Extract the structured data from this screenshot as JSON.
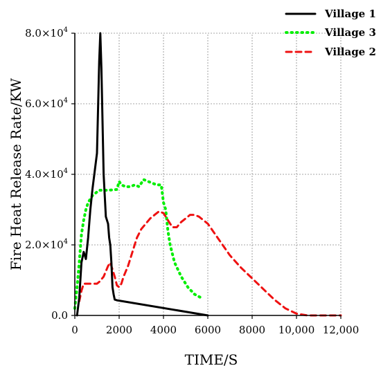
{
  "chart_data": {
    "type": "line",
    "title": "",
    "xlabel": "TIME/S",
    "ylabel": "Fire Heat Release Rate/KW",
    "xlim": [
      0,
      12000
    ],
    "ylim": [
      0,
      80000
    ],
    "x_ticks": [
      {
        "value": 0,
        "label": "0"
      },
      {
        "value": 2000,
        "label": "2000"
      },
      {
        "value": 4000,
        "label": "4000"
      },
      {
        "value": 6000,
        "label": "6000"
      },
      {
        "value": 8000,
        "label": "8000"
      },
      {
        "value": 10000,
        "label": "10,000"
      },
      {
        "value": 12000,
        "label": "12,000"
      }
    ],
    "y_ticks": [
      {
        "value": 0,
        "mantissa": "0.0",
        "exponent": ""
      },
      {
        "value": 20000,
        "mantissa": "2.0×10",
        "exponent": "4"
      },
      {
        "value": 40000,
        "mantissa": "4.0×10",
        "exponent": "4"
      },
      {
        "value": 60000,
        "mantissa": "6.0×10",
        "exponent": "4"
      },
      {
        "value": 80000,
        "mantissa": "8.0×10",
        "exponent": "4"
      }
    ],
    "grid": true,
    "legend_position": "top-right",
    "series": [
      {
        "name": "Village 1",
        "color": "#000000",
        "style": "solid",
        "x": [
          100,
          200,
          300,
          400,
          500,
          600,
          700,
          800,
          900,
          1000,
          1100,
          1150,
          1200,
          1300,
          1400,
          1500,
          1550,
          1600,
          1650,
          1700,
          1750,
          1800,
          1900,
          2000,
          6000
        ],
        "y": [
          0,
          5000,
          15000,
          18000,
          16000,
          22000,
          30000,
          36000,
          41000,
          46000,
          72000,
          80000,
          70000,
          40000,
          28000,
          26000,
          22000,
          20000,
          15000,
          8000,
          6000,
          4500,
          4300,
          4200,
          0
        ]
      },
      {
        "name": "Village 3",
        "color": "#00ee00",
        "style": "dotted",
        "x": [
          0,
          100,
          200,
          300,
          400,
          500,
          600,
          800,
          1000,
          1100,
          1500,
          1900,
          2000,
          2100,
          2300,
          2500,
          2700,
          2900,
          3100,
          3300,
          3500,
          3700,
          3900,
          4000,
          4100,
          4200,
          4300,
          4500,
          4800,
          5100,
          5400,
          5700
        ],
        "y": [
          2000,
          8000,
          15000,
          23000,
          27000,
          30000,
          32000,
          34000,
          35000,
          35500,
          35500,
          35700,
          38000,
          37000,
          36500,
          36500,
          37000,
          36500,
          38500,
          38000,
          37500,
          37000,
          37000,
          32000,
          30000,
          24000,
          20000,
          15000,
          11000,
          8000,
          6000,
          5000
        ]
      },
      {
        "name": "Village 2",
        "color": "#ee1111",
        "style": "dashed",
        "x": [
          200,
          300,
          400,
          600,
          800,
          1000,
          1100,
          1300,
          1500,
          1600,
          1700,
          1800,
          1900,
          2000,
          2100,
          2200,
          2400,
          2600,
          2800,
          3000,
          3200,
          3400,
          3600,
          3800,
          4000,
          4200,
          4400,
          4600,
          4800,
          5000,
          5200,
          5400,
          5600,
          5800,
          6000,
          6500,
          7000,
          7500,
          8000,
          8500,
          9000,
          9500,
          10000,
          10500,
          11000,
          12000
        ],
        "y": [
          4000,
          7000,
          9000,
          9000,
          9000,
          9000,
          9500,
          11000,
          14000,
          15000,
          13000,
          11000,
          8500,
          8000,
          9000,
          11000,
          14000,
          18000,
          22000,
          24500,
          26000,
          27500,
          28500,
          29500,
          29000,
          27000,
          25000,
          25000,
          26500,
          27500,
          28500,
          28500,
          28000,
          27000,
          26000,
          21500,
          17000,
          13500,
          10500,
          7500,
          4500,
          2000,
          500,
          0,
          0,
          0
        ]
      }
    ]
  }
}
